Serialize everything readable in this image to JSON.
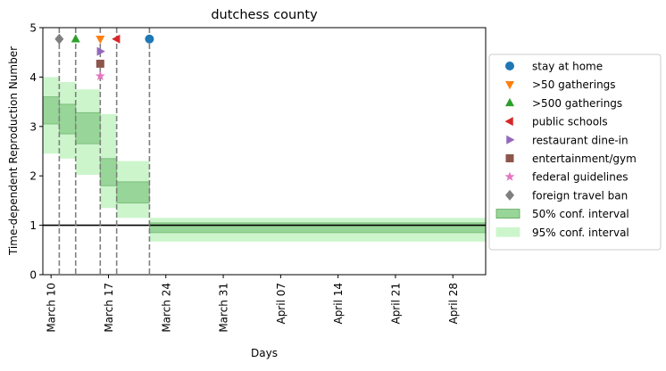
{
  "chart_data": {
    "type": "step-interval",
    "title": "dutchess county",
    "xlabel": "Days",
    "ylabel": "Time-dependent Reproduction Number",
    "x_range": [
      "2020-03-09",
      "2020-05-02"
    ],
    "ylim": [
      0,
      5
    ],
    "y_ticks": [
      0,
      1,
      2,
      3,
      4,
      5
    ],
    "x_ticks": [
      {
        "date": "2020-03-10",
        "label": "March 10"
      },
      {
        "date": "2020-03-17",
        "label": "March 17"
      },
      {
        "date": "2020-03-24",
        "label": "March 24"
      },
      {
        "date": "2020-03-31",
        "label": "March 31"
      },
      {
        "date": "2020-04-07",
        "label": "April 07"
      },
      {
        "date": "2020-04-14",
        "label": "April 14"
      },
      {
        "date": "2020-04-21",
        "label": "April 21"
      },
      {
        "date": "2020-04-28",
        "label": "April 28"
      }
    ],
    "reference_line": {
      "y": 1
    },
    "intervals": [
      {
        "start": "2020-03-09",
        "end": "2020-03-11",
        "ci50": [
          3.05,
          3.6
        ],
        "ci95": [
          2.45,
          4.0
        ]
      },
      {
        "start": "2020-03-11",
        "end": "2020-03-13",
        "ci50": [
          2.85,
          3.45
        ],
        "ci95": [
          2.35,
          3.9
        ]
      },
      {
        "start": "2020-03-13",
        "end": "2020-03-16",
        "ci50": [
          2.65,
          3.28
        ],
        "ci95": [
          2.02,
          3.75
        ]
      },
      {
        "start": "2020-03-16",
        "end": "2020-03-18",
        "ci50": [
          1.8,
          2.35
        ],
        "ci95": [
          1.35,
          3.25
        ]
      },
      {
        "start": "2020-03-18",
        "end": "2020-03-22",
        "ci50": [
          1.45,
          1.88
        ],
        "ci95": [
          1.15,
          2.3
        ]
      },
      {
        "start": "2020-03-22",
        "end": "2020-05-02",
        "ci50": [
          0.85,
          1.05
        ],
        "ci95": [
          0.67,
          1.15
        ]
      }
    ],
    "event_lines": [
      "2020-03-11",
      "2020-03-13",
      "2020-03-16",
      "2020-03-18",
      "2020-03-22"
    ],
    "events": [
      {
        "name": "stay at home",
        "date": "2020-03-22",
        "y": 4.77,
        "marker": "circle",
        "color": "#1f77b4"
      },
      {
        "name": ">50 gatherings",
        "date": "2020-03-16",
        "y": 4.77,
        "marker": "triangle-down",
        "color": "#ff7f0e"
      },
      {
        "name": ">500 gatherings",
        "date": "2020-03-13",
        "y": 4.77,
        "marker": "triangle-up",
        "color": "#2ca02c"
      },
      {
        "name": "public schools",
        "date": "2020-03-18",
        "y": 4.77,
        "marker": "triangle-left",
        "color": "#d62728"
      },
      {
        "name": "restaurant dine-in",
        "date": "2020-03-16",
        "y": 4.52,
        "marker": "triangle-right",
        "color": "#9467bd"
      },
      {
        "name": "entertainment/gym",
        "date": "2020-03-16",
        "y": 4.27,
        "marker": "square",
        "color": "#8c564b"
      },
      {
        "name": "federal guidelines",
        "date": "2020-03-16",
        "y": 4.02,
        "marker": "star",
        "color": "#e377c2"
      },
      {
        "name": "foreign travel ban",
        "date": "2020-03-11",
        "y": 4.77,
        "marker": "diamond",
        "color": "#7f7f7f"
      }
    ],
    "legend": {
      "position": "center-right",
      "entries": [
        {
          "label": "stay at home",
          "marker": "circle",
          "color": "#1f77b4"
        },
        {
          "label": ">50 gatherings",
          "marker": "triangle-down",
          "color": "#ff7f0e"
        },
        {
          "label": ">500 gatherings",
          "marker": "triangle-up",
          "color": "#2ca02c"
        },
        {
          "label": "public schools",
          "marker": "triangle-left",
          "color": "#d62728"
        },
        {
          "label": "restaurant dine-in",
          "marker": "triangle-right",
          "color": "#9467bd"
        },
        {
          "label": "entertainment/gym",
          "marker": "square",
          "color": "#8c564b"
        },
        {
          "label": "federal guidelines",
          "marker": "star",
          "color": "#e377c2"
        },
        {
          "label": "foreign travel ban",
          "marker": "diamond",
          "color": "#7f7f7f"
        },
        {
          "label": "50% conf. interval",
          "marker": "patch",
          "color": "#98d598",
          "edge": "#5aa55a"
        },
        {
          "label": "95% conf. interval",
          "marker": "patch",
          "color": "#ccf5cc",
          "edge": "#ccf5cc"
        }
      ]
    },
    "colors": {
      "ci50_fill": "#98d598",
      "ci50_edge": "#5aa55a",
      "ci95_fill": "#ccf5cc",
      "event_line": "#7f7f7f",
      "reference_line": "#000000"
    }
  }
}
